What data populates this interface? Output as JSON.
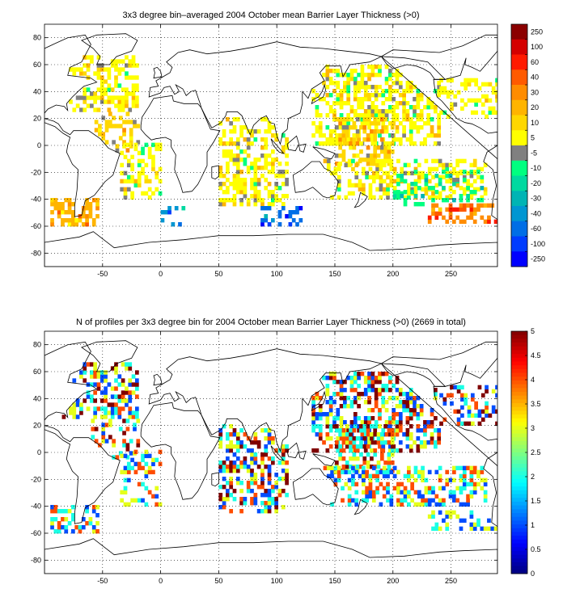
{
  "chart_data": [
    {
      "type": "heatmap",
      "title": "3x3 degree bin–averaged 2004 October mean Barrier Layer Thickness (>0)",
      "xlim": [
        -100,
        290
      ],
      "ylim": [
        -90,
        90
      ],
      "x_ticks": [
        "-50",
        "0",
        "50",
        "100",
        "150",
        "200",
        "250"
      ],
      "y_ticks": [
        "80",
        "60",
        "40",
        "20",
        "0",
        "-20",
        "-40",
        "-60",
        "-80"
      ],
      "grid": true,
      "colorbar": {
        "labels": [
          "250",
          "100",
          "60",
          "40",
          "30",
          "20",
          "10",
          "5",
          "-5",
          "-10",
          "-20",
          "-30",
          "-40",
          "-60",
          "-100",
          "-250"
        ],
        "colors": [
          "#8b0000",
          "#d40000",
          "#ff1a00",
          "#ff5a00",
          "#ff8c00",
          "#ffb400",
          "#ffd700",
          "#ffff00",
          "#808080",
          "#00ff80",
          "#00d9a0",
          "#00b4b4",
          "#0096d2",
          "#006ee6",
          "#003cff",
          "#0000ff"
        ]
      },
      "regions": [
        {
          "lon": [
            -85,
            -20
          ],
          "lat": [
            25,
            65
          ],
          "dominant": "5",
          "density": 0.55
        },
        {
          "lon": [
            -60,
            -20
          ],
          "lat": [
            -5,
            25
          ],
          "dominant": "10",
          "density": 0.35
        },
        {
          "lon": [
            -35,
            0
          ],
          "lat": [
            -40,
            0
          ],
          "dominant": "5",
          "density": 0.35
        },
        {
          "lon": [
            -95,
            -55
          ],
          "lat": [
            -60,
            -40
          ],
          "dominant": "20",
          "density": 0.55
        },
        {
          "lon": [
            0,
            20
          ],
          "lat": [
            -60,
            -45
          ],
          "dominant": "-40",
          "density": 0.25
        },
        {
          "lon": [
            50,
            110
          ],
          "lat": [
            -45,
            20
          ],
          "dominant": "5",
          "density": 0.5
        },
        {
          "lon": [
            80,
            120
          ],
          "lat": [
            -60,
            -45
          ],
          "dominant": "-60",
          "density": 0.35
        },
        {
          "lon": [
            130,
            240
          ],
          "lat": [
            0,
            60
          ],
          "dominant": "5",
          "density": 0.55
        },
        {
          "lon": [
            150,
            200
          ],
          "lat": [
            -15,
            20
          ],
          "dominant": "10",
          "density": 0.55
        },
        {
          "lon": [
            140,
            280
          ],
          "lat": [
            -40,
            -10
          ],
          "dominant": "5",
          "density": 0.45
        },
        {
          "lon": [
            200,
            280
          ],
          "lat": [
            -45,
            -20
          ],
          "dominant": "-10",
          "density": 0.3
        },
        {
          "lon": [
            230,
            290
          ],
          "lat": [
            -58,
            -45
          ],
          "dominant": "30",
          "density": 0.45
        },
        {
          "lon": [
            240,
            290
          ],
          "lat": [
            20,
            50
          ],
          "dominant": "5",
          "density": 0.35
        }
      ]
    },
    {
      "type": "heatmap",
      "title": "N of profiles per 3x3 degree bin for 2004 October mean Barrier Layer Thickness (>0) (2669 in total)",
      "xlim": [
        -100,
        290
      ],
      "ylim": [
        -90,
        90
      ],
      "x_ticks": [
        "-50",
        "0",
        "50",
        "100",
        "150",
        "200",
        "250"
      ],
      "y_ticks": [
        "80",
        "60",
        "40",
        "20",
        "0",
        "-20",
        "-40",
        "-60",
        "-80"
      ],
      "grid": true,
      "colorbar": {
        "labels": [
          "5",
          "4.5",
          "4",
          "3.5",
          "3",
          "2.5",
          "2",
          "1.5",
          "1",
          "0.5",
          "0"
        ],
        "range": [
          0,
          5
        ]
      },
      "regions": [
        {
          "lon": [
            -85,
            -20
          ],
          "lat": [
            25,
            65
          ],
          "count_range": [
            1,
            5
          ],
          "density": 0.5
        },
        {
          "lon": [
            -60,
            -20
          ],
          "lat": [
            -5,
            25
          ],
          "count_range": [
            1,
            5
          ],
          "density": 0.35
        },
        {
          "lon": [
            -35,
            0
          ],
          "lat": [
            -40,
            0
          ],
          "count_range": [
            1,
            4
          ],
          "density": 0.35
        },
        {
          "lon": [
            -95,
            -55
          ],
          "lat": [
            -60,
            -40
          ],
          "count_range": [
            1,
            4
          ],
          "density": 0.55
        },
        {
          "lon": [
            50,
            110
          ],
          "lat": [
            -45,
            20
          ],
          "count_range": [
            1,
            5
          ],
          "density": 0.5
        },
        {
          "lon": [
            130,
            240
          ],
          "lat": [
            0,
            60
          ],
          "count_range": [
            1,
            5
          ],
          "density": 0.55
        },
        {
          "lon": [
            150,
            200
          ],
          "lat": [
            -15,
            20
          ],
          "count_range": [
            2,
            5
          ],
          "density": 0.55
        },
        {
          "lon": [
            140,
            280
          ],
          "lat": [
            -40,
            -10
          ],
          "count_range": [
            1,
            4
          ],
          "density": 0.45
        },
        {
          "lon": [
            230,
            290
          ],
          "lat": [
            -58,
            -45
          ],
          "count_range": [
            1,
            3
          ],
          "density": 0.45
        },
        {
          "lon": [
            240,
            290
          ],
          "lat": [
            20,
            50
          ],
          "count_range": [
            1,
            5
          ],
          "density": 0.35
        }
      ]
    }
  ]
}
